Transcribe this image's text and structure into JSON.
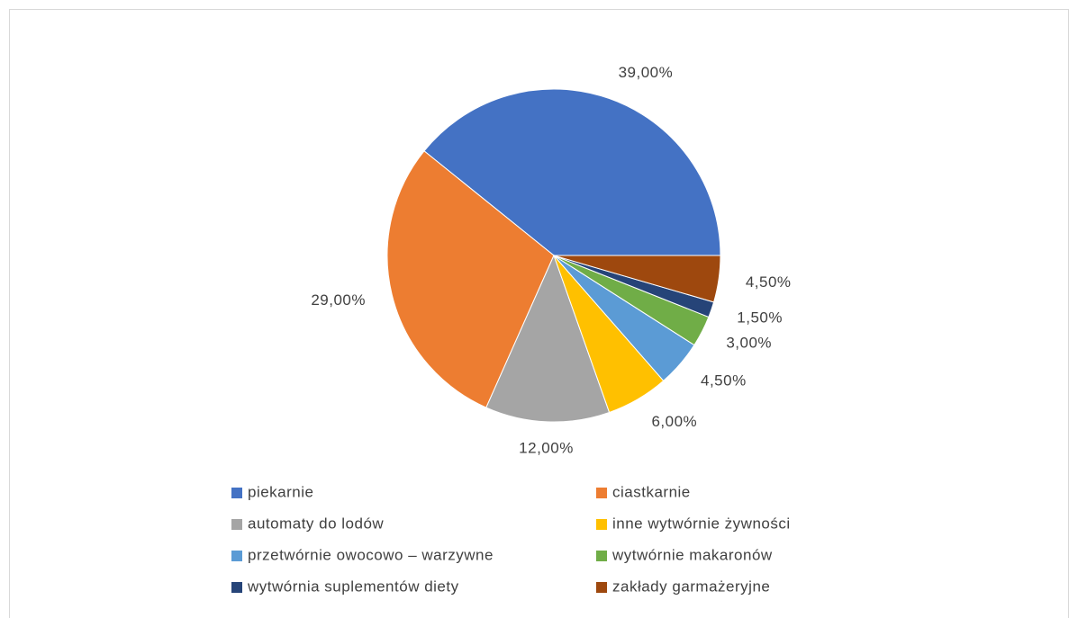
{
  "chart_data": {
    "type": "pie",
    "categories": [
      "piekarnie",
      "ciastkarnie",
      "automaty do lodów",
      "inne wytwórnie żywności",
      "przetwórnie owocowo – warzywne",
      "wytwórnie makaronów",
      "wytwórnia suplementów diety",
      "zakłady garmażeryjne"
    ],
    "values": [
      39,
      29,
      12,
      6,
      4.5,
      3,
      1.5,
      4.5
    ],
    "value_labels": [
      "39,00%",
      "29,00%",
      "12,00%",
      "6,00%",
      "4,50%",
      "3,00%",
      "1,50%",
      "4,50%"
    ],
    "colors": [
      "#4472c4",
      "#ed7d31",
      "#a5a5a5",
      "#ffc000",
      "#5b9bd5",
      "#70ad47",
      "#264478",
      "#9e480e"
    ],
    "legend": "bottom"
  }
}
